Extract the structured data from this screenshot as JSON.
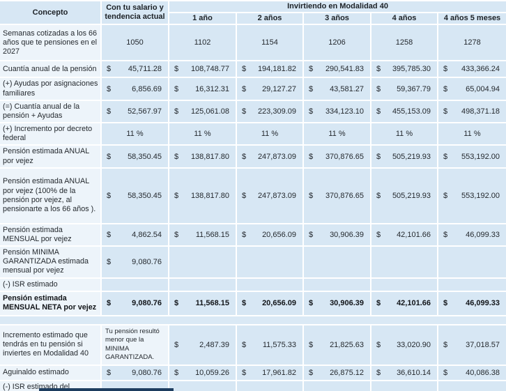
{
  "colors": {
    "data_cell_blue": "#d7e7f4",
    "label_cell_pale": "#edf4fa",
    "divider_white": "#ffffff",
    "dark_strip_navy": "#1d3d5f",
    "text": "#24292e"
  },
  "table": {
    "header": {
      "concepto": "Concepto",
      "current": "Con tu salario y tendencia actual",
      "group": "Invirtiendo en Modalidad 40",
      "periods": [
        "1 año",
        "2 años",
        "3 años",
        "4 años",
        "4 años 5 meses"
      ]
    },
    "rows": [
      {
        "label": "Semanas cotizadas a los 66 años que te pensiones en el 2027",
        "type": "plain",
        "values": [
          "1050",
          "1102",
          "1154",
          "1206",
          "1258",
          "1278"
        ]
      },
      {
        "label": "Cuantía anual de la pensión",
        "type": "money",
        "values": [
          "45,711.28",
          "108,748.77",
          "194,181.82",
          "290,541.83",
          "395,785.30",
          "433,366.24"
        ]
      },
      {
        "label": "(+) Ayudas por asignaciones familiares",
        "type": "money",
        "values": [
          "6,856.69",
          "16,312.31",
          "29,127.27",
          "43,581.27",
          "59,367.79",
          "65,004.94"
        ]
      },
      {
        "label": "(=) Cuantía anual de la pensión + Ayudas",
        "type": "money",
        "values": [
          "52,567.97",
          "125,061.08",
          "223,309.09",
          "334,123.10",
          "455,153.09",
          "498,371.18"
        ]
      },
      {
        "label": "(+) Incremento por decreto federal",
        "type": "plain",
        "values": [
          "11 %",
          "11 %",
          "11 %",
          "11 %",
          "11 %",
          "11 %"
        ]
      },
      {
        "label": "Pensión estimada ANUAL por vejez",
        "type": "money",
        "values": [
          "58,350.45",
          "138,817.80",
          "247,873.09",
          "370,876.65",
          "505,219.93",
          "553,192.00"
        ]
      },
      {
        "label": "Pensión estimada ANUAL por vejez (100% de la pensión por vejez, al pensionarte a los 66 años ).",
        "type": "money",
        "values": [
          "58,350.45",
          "138,817.80",
          "247,873.09",
          "370,876.65",
          "505,219.93",
          "553,192.00"
        ]
      },
      {
        "label": "Pensión estimada MENSUAL por vejez",
        "type": "money",
        "values": [
          "4,862.54",
          "11,568.15",
          "20,656.09",
          "30,906.39",
          "42,101.66",
          "46,099.33"
        ]
      },
      {
        "label": "Pensión MINIMA GARANTIZADA estimada mensual por vejez",
        "type": "money",
        "values": [
          "9,080.76",
          "",
          "",
          "",
          "",
          ""
        ]
      },
      {
        "label": "(-) ISR estimado",
        "type": "plain",
        "values": [
          "",
          "",
          "",
          "",
          "",
          ""
        ]
      },
      {
        "label": "Pensión estimada MENSUAL NETA por vejez",
        "type": "money",
        "bold": true,
        "values": [
          "9,080.76",
          "11,568.15",
          "20,656.09",
          "30,906.39",
          "42,101.66",
          "46,099.33"
        ]
      },
      {
        "type": "spacer"
      },
      {
        "label": "Incremento estimado que tendrás en tu pensión si inviertes en Modalidad 40",
        "type": "money",
        "note": "Tu pensión resultó menor que la MINIMA GARANTIZADA.",
        "values": [
          "2,487.39",
          "11,575.33",
          "21,825.63",
          "33,020.90",
          "37,018.57"
        ]
      },
      {
        "label": "Aguinaldo estimado",
        "type": "money",
        "values": [
          "9,080.76",
          "10,059.26",
          "17,961.82",
          "26,875.12",
          "36,610.14",
          "40,086.38"
        ]
      },
      {
        "label": "(-) ISR estimado del Aguinaldo",
        "type": "plain",
        "values": [
          "",
          "",
          "",
          "",
          "",
          ""
        ]
      }
    ]
  }
}
